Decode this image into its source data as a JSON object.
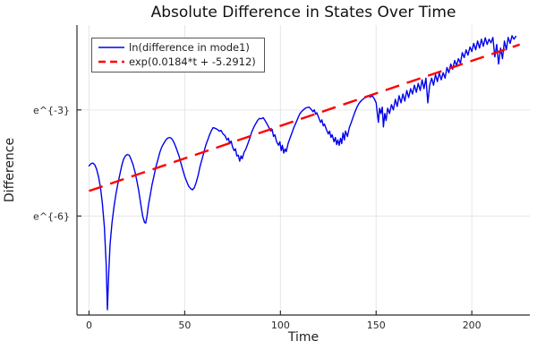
{
  "figure": {
    "background": "#ffffff"
  },
  "colors": {
    "grid": "#e6e6e6",
    "axis": "#2b2b2b",
    "text": "#1f1f1f",
    "legend_border": "#555555",
    "legend_fill": "#ffffff",
    "series_blue": "#0000ee",
    "trend_red": "#ff0000"
  },
  "chart_data": {
    "type": "line",
    "title": "Absolute Difference in States Over Time",
    "xlabel": "Time",
    "ylabel": "Difference",
    "grid": true,
    "legend_position": "top-left",
    "x_ticks": [
      0,
      50,
      100,
      150,
      200
    ],
    "y_ticks": [
      {
        "ln": -3,
        "label": "e^{-3}"
      },
      {
        "ln": -6,
        "label": "e^{-6}"
      }
    ],
    "xlim": [
      -6.3,
      230.3
    ],
    "ylim_ln": [
      -8.8,
      -0.6
    ],
    "y_scale_note": "y axis is log scale; values stored as natural-log of difference",
    "series": [
      {
        "name": "ln(difference in mode1)",
        "color": "#0000ee",
        "style": "solid",
        "points": [
          [
            0,
            -4.58
          ],
          [
            1,
            -4.52
          ],
          [
            2,
            -4.5
          ],
          [
            3,
            -4.55
          ],
          [
            4,
            -4.68
          ],
          [
            5,
            -4.9
          ],
          [
            6,
            -5.2
          ],
          [
            7,
            -5.65
          ],
          [
            8,
            -6.3
          ],
          [
            9,
            -7.4
          ],
          [
            9.6,
            -8.65
          ],
          [
            10.3,
            -7.6
          ],
          [
            11,
            -6.8
          ],
          [
            12,
            -6.2
          ],
          [
            13,
            -5.75
          ],
          [
            14,
            -5.4
          ],
          [
            15,
            -5.1
          ],
          [
            16,
            -4.85
          ],
          [
            17,
            -4.6
          ],
          [
            18,
            -4.4
          ],
          [
            19,
            -4.3
          ],
          [
            20,
            -4.26
          ],
          [
            21,
            -4.28
          ],
          [
            22,
            -4.4
          ],
          [
            23,
            -4.55
          ],
          [
            24,
            -4.75
          ],
          [
            25,
            -5.0
          ],
          [
            26,
            -5.3
          ],
          [
            27,
            -5.65
          ],
          [
            28,
            -6.0
          ],
          [
            29,
            -6.18
          ],
          [
            29.6,
            -6.2
          ],
          [
            30.3,
            -6.0
          ],
          [
            31,
            -5.7
          ],
          [
            32,
            -5.4
          ],
          [
            33,
            -5.1
          ],
          [
            34,
            -4.85
          ],
          [
            35,
            -4.6
          ],
          [
            36,
            -4.4
          ],
          [
            37,
            -4.2
          ],
          [
            38,
            -4.05
          ],
          [
            39,
            -3.95
          ],
          [
            40,
            -3.86
          ],
          [
            41,
            -3.8
          ],
          [
            42,
            -3.78
          ],
          [
            43,
            -3.8
          ],
          [
            44,
            -3.88
          ],
          [
            45,
            -4.0
          ],
          [
            46,
            -4.15
          ],
          [
            47,
            -4.3
          ],
          [
            48,
            -4.5
          ],
          [
            49,
            -4.7
          ],
          [
            50,
            -4.88
          ],
          [
            51,
            -5.02
          ],
          [
            52,
            -5.15
          ],
          [
            53,
            -5.22
          ],
          [
            54,
            -5.26
          ],
          [
            55,
            -5.2
          ],
          [
            56,
            -5.05
          ],
          [
            57,
            -4.85
          ],
          [
            58,
            -4.6
          ],
          [
            59,
            -4.4
          ],
          [
            60,
            -4.2
          ],
          [
            61,
            -4.0
          ],
          [
            62,
            -3.85
          ],
          [
            63,
            -3.7
          ],
          [
            64,
            -3.58
          ],
          [
            64.8,
            -3.5
          ],
          [
            66,
            -3.52
          ],
          [
            67,
            -3.55
          ],
          [
            68,
            -3.6
          ],
          [
            69,
            -3.58
          ],
          [
            70,
            -3.68
          ],
          [
            71,
            -3.72
          ],
          [
            72,
            -3.85
          ],
          [
            72.8,
            -3.8
          ],
          [
            73.5,
            -3.95
          ],
          [
            74.2,
            -3.88
          ],
          [
            75,
            -4.05
          ],
          [
            75.8,
            -4.15
          ],
          [
            76.5,
            -4.1
          ],
          [
            77.2,
            -4.3
          ],
          [
            78,
            -4.28
          ],
          [
            78.7,
            -4.45
          ],
          [
            79.4,
            -4.3
          ],
          [
            80,
            -4.38
          ],
          [
            81,
            -4.2
          ],
          [
            82,
            -4.1
          ],
          [
            83,
            -3.95
          ],
          [
            84,
            -3.8
          ],
          [
            85,
            -3.62
          ],
          [
            86,
            -3.5
          ],
          [
            87,
            -3.4
          ],
          [
            88,
            -3.3
          ],
          [
            89,
            -3.24
          ],
          [
            90,
            -3.25
          ],
          [
            91,
            -3.22
          ],
          [
            92,
            -3.3
          ],
          [
            93,
            -3.4
          ],
          [
            94,
            -3.5
          ],
          [
            95,
            -3.6
          ],
          [
            95.7,
            -3.55
          ],
          [
            96.4,
            -3.75
          ],
          [
            97.1,
            -3.7
          ],
          [
            98,
            -3.9
          ],
          [
            99,
            -4.0
          ],
          [
            99.7,
            -3.9
          ],
          [
            100.4,
            -4.15
          ],
          [
            101,
            -4.0
          ],
          [
            101.7,
            -4.22
          ],
          [
            102.4,
            -4.1
          ],
          [
            103,
            -4.18
          ],
          [
            104,
            -3.95
          ],
          [
            105,
            -3.8
          ],
          [
            106,
            -3.65
          ],
          [
            107,
            -3.5
          ],
          [
            108,
            -3.38
          ],
          [
            109,
            -3.25
          ],
          [
            110,
            -3.12
          ],
          [
            111,
            -3.05
          ],
          [
            112,
            -3.0
          ],
          [
            113,
            -2.95
          ],
          [
            114,
            -2.93
          ],
          [
            115,
            -2.92
          ],
          [
            116,
            -2.98
          ],
          [
            117,
            -3.05
          ],
          [
            117.7,
            -3.0
          ],
          [
            118.4,
            -3.12
          ],
          [
            119,
            -3.08
          ],
          [
            120,
            -3.22
          ],
          [
            121,
            -3.35
          ],
          [
            121.7,
            -3.28
          ],
          [
            122.4,
            -3.45
          ],
          [
            123,
            -3.4
          ],
          [
            124,
            -3.55
          ],
          [
            125,
            -3.68
          ],
          [
            125.7,
            -3.6
          ],
          [
            126.4,
            -3.78
          ],
          [
            127,
            -3.7
          ],
          [
            128,
            -3.9
          ],
          [
            128.7,
            -3.78
          ],
          [
            129.4,
            -3.98
          ],
          [
            130,
            -3.85
          ],
          [
            130.7,
            -4.0
          ],
          [
            131.4,
            -3.8
          ],
          [
            132,
            -3.95
          ],
          [
            132.7,
            -3.65
          ],
          [
            133.4,
            -3.85
          ],
          [
            134,
            -3.6
          ],
          [
            135,
            -3.75
          ],
          [
            136,
            -3.5
          ],
          [
            137,
            -3.35
          ],
          [
            138,
            -3.2
          ],
          [
            139,
            -3.05
          ],
          [
            140,
            -2.92
          ],
          [
            141,
            -2.82
          ],
          [
            142,
            -2.75
          ],
          [
            143,
            -2.7
          ],
          [
            144,
            -2.66
          ],
          [
            145,
            -2.64
          ],
          [
            146,
            -2.6
          ],
          [
            147,
            -2.64
          ],
          [
            148,
            -2.6
          ],
          [
            149,
            -2.68
          ],
          [
            150,
            -2.8
          ],
          [
            150.6,
            -3.1
          ],
          [
            151.2,
            -3.35
          ],
          [
            151.8,
            -2.95
          ],
          [
            152.5,
            -3.1
          ],
          [
            153.2,
            -2.92
          ],
          [
            153.8,
            -3.48
          ],
          [
            154.5,
            -3.1
          ],
          [
            155.2,
            -3.3
          ],
          [
            156,
            -2.95
          ],
          [
            157,
            -3.1
          ],
          [
            158,
            -2.85
          ],
          [
            159,
            -3.0
          ],
          [
            160,
            -2.7
          ],
          [
            161,
            -2.9
          ],
          [
            162,
            -2.6
          ],
          [
            163,
            -2.8
          ],
          [
            164,
            -2.55
          ],
          [
            165,
            -2.75
          ],
          [
            166,
            -2.45
          ],
          [
            167,
            -2.65
          ],
          [
            168,
            -2.4
          ],
          [
            169,
            -2.55
          ],
          [
            170,
            -2.3
          ],
          [
            171,
            -2.5
          ],
          [
            172,
            -2.25
          ],
          [
            173,
            -2.45
          ],
          [
            174,
            -2.15
          ],
          [
            175,
            -2.4
          ],
          [
            176,
            -2.1
          ],
          [
            177,
            -2.8
          ],
          [
            178,
            -2.3
          ],
          [
            179,
            -2.1
          ],
          [
            180,
            -2.3
          ],
          [
            181,
            -2.0
          ],
          [
            182,
            -2.2
          ],
          [
            183,
            -1.95
          ],
          [
            184,
            -2.15
          ],
          [
            185,
            -1.95
          ],
          [
            186,
            -2.1
          ],
          [
            187,
            -1.8
          ],
          [
            188,
            -1.95
          ],
          [
            189,
            -1.7
          ],
          [
            190,
            -1.85
          ],
          [
            191,
            -1.6
          ],
          [
            192,
            -1.75
          ],
          [
            193,
            -1.55
          ],
          [
            194,
            -1.68
          ],
          [
            195,
            -1.38
          ],
          [
            196,
            -1.52
          ],
          [
            197,
            -1.3
          ],
          [
            198,
            -1.45
          ],
          [
            199,
            -1.22
          ],
          [
            200,
            -1.35
          ],
          [
            201,
            -1.12
          ],
          [
            202,
            -1.3
          ],
          [
            203,
            -1.05
          ],
          [
            204,
            -1.25
          ],
          [
            205,
            -1.0
          ],
          [
            206,
            -1.2
          ],
          [
            207,
            -0.96
          ],
          [
            208,
            -1.15
          ],
          [
            209,
            -1.0
          ],
          [
            210,
            -1.1
          ],
          [
            211,
            -0.95
          ],
          [
            212,
            -1.5
          ],
          [
            213,
            -1.15
          ],
          [
            214,
            -1.7
          ],
          [
            215,
            -1.25
          ],
          [
            216,
            -1.55
          ],
          [
            217,
            -1.05
          ],
          [
            218,
            -1.3
          ],
          [
            219,
            -0.95
          ],
          [
            220,
            -1.12
          ],
          [
            221,
            -0.9
          ],
          [
            222,
            -1.0
          ],
          [
            223,
            -0.92
          ]
        ]
      }
    ],
    "trend": {
      "name": "exp(0.0184*t + -5.2912)",
      "color": "#ff0000",
      "style": "dashed",
      "slope": 0.0184,
      "intercept": -5.2912,
      "t_range": [
        0,
        225
      ]
    }
  }
}
